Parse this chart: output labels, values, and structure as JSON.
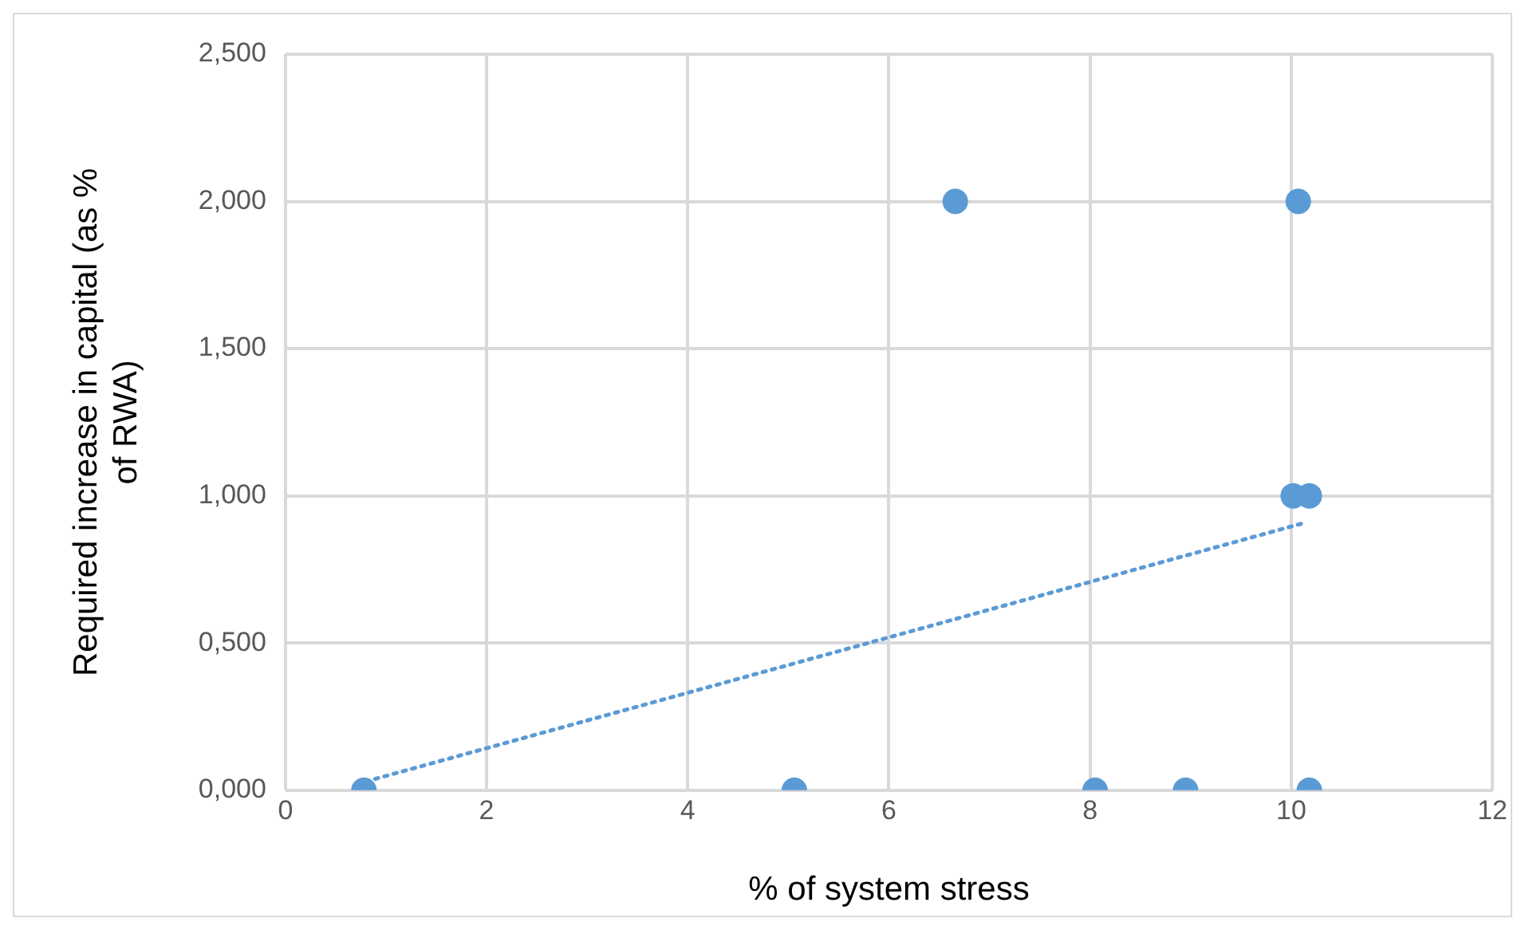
{
  "chart_data": {
    "type": "scatter",
    "xlabel": "% of system stress",
    "ylabel": "Required increase in capital (as % of RWA)",
    "series": [
      {
        "type": "scatter",
        "color": "#5b9bd5",
        "x": [
          0.78,
          5.06,
          6.66,
          8.05,
          8.95,
          10.07,
          10.02,
          10.18,
          10.18
        ],
        "values": [
          0,
          0,
          2,
          0,
          0,
          2,
          1,
          1,
          0
        ]
      },
      {
        "type": "line",
        "color": "#5b9bd5",
        "line_style": "dotted",
        "marker": "none",
        "x": [
          0.8,
          10.15
        ],
        "values": [
          0.03,
          0.91
        ]
      }
    ],
    "xlim": [
      0,
      12
    ],
    "xticks": [
      0,
      2,
      4,
      6,
      8,
      10,
      12
    ],
    "ylim": [
      0,
      2.5
    ],
    "yticks": [
      {
        "value": 0,
        "label": "0,000"
      },
      {
        "value": 0.5,
        "label": "0,500"
      },
      {
        "value": 1,
        "label": "1,000"
      },
      {
        "value": 1.5,
        "label": "1,500"
      },
      {
        "value": 2,
        "label": "2,000"
      },
      {
        "value": 2.5,
        "label": "2,500"
      }
    ],
    "grid": true,
    "legend": false,
    "marker": "circle"
  }
}
